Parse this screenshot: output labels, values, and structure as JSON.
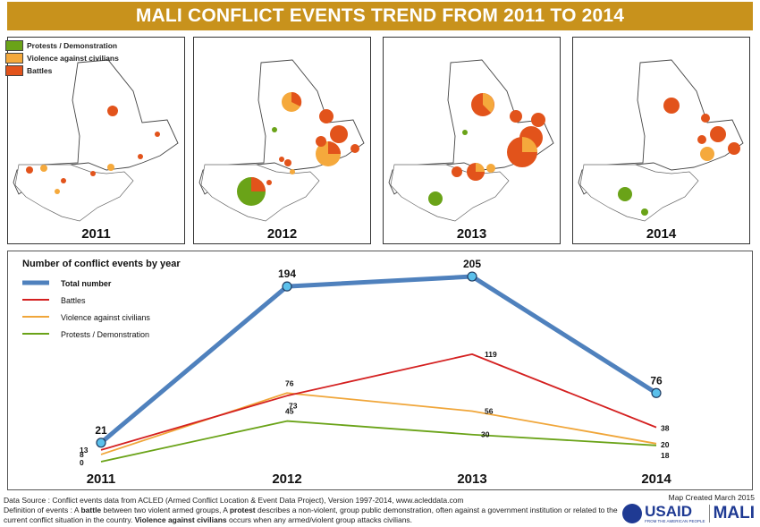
{
  "title": "MALI CONFLICT EVENTS TREND FROM 2011 TO 2014",
  "map_legend": [
    {
      "label": "Protests / Demonstration",
      "color": "#6aa318"
    },
    {
      "label": "Violence against civilians",
      "color": "#f5a93c"
    },
    {
      "label": "Battles",
      "color": "#e2531b"
    }
  ],
  "panels": [
    {
      "year": "2011"
    },
    {
      "year": "2012"
    },
    {
      "year": "2013"
    },
    {
      "year": "2014"
    }
  ],
  "chart_data": {
    "type": "line",
    "title": "Number of conflict events by year",
    "categories": [
      "2011",
      "2012",
      "2013",
      "2014"
    ],
    "series": [
      {
        "name": "Total number",
        "color": "#4f81bd",
        "values": [
          21,
          194,
          205,
          76
        ]
      },
      {
        "name": "Battles",
        "color": "#d42020",
        "values": [
          13,
          73,
          119,
          38
        ]
      },
      {
        "name": "Violence against civilians",
        "color": "#f0a63a",
        "values": [
          8,
          76,
          56,
          20
        ]
      },
      {
        "name": "Protests / Demonstration",
        "color": "#6aa318",
        "values": [
          0,
          45,
          30,
          18
        ]
      }
    ]
  },
  "footer": {
    "source": "Data Source : Conflict events data from ACLED (Armed Conflict Location & Event Data Project), Version 1997-2014, www.acleddata.com",
    "def_a": "Definition of events : A ",
    "def_battle": "battle",
    "def_b": " between two violent armed groups, A ",
    "def_protest": "protest",
    "def_c": " describes a non-violent, group public demonstration, often against a government institution or related",
    "def_d": "to the current conflict situation in the country. ",
    "def_vac": "Violence against civilians",
    "def_e": " occurs when any armed/violent group attacks civilians.",
    "map_created": "Map Created March 2015",
    "logo_usaid": "USAID",
    "logo_usaid_sub": "FROM THE AMERICAN PEOPLE",
    "logo_country": "MALI"
  }
}
